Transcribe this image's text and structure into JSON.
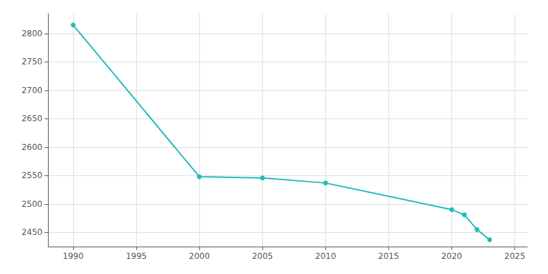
{
  "chart_data": {
    "type": "line",
    "x": [
      1990,
      2000,
      2005,
      2010,
      2020,
      2021,
      2022,
      2023
    ],
    "values": [
      2815,
      2548,
      2546,
      2537,
      2490,
      2481,
      2455,
      2437
    ],
    "color": "#22BBBB",
    "marker": "circle",
    "xlim": [
      1988,
      2026
    ],
    "xticks": [
      1990,
      1995,
      2000,
      2005,
      2010,
      2015,
      2020,
      2025
    ],
    "ylim": [
      2425,
      2835
    ],
    "yticks": [
      2450,
      2500,
      2550,
      2600,
      2650,
      2700,
      2750,
      2800
    ],
    "grid": true
  }
}
